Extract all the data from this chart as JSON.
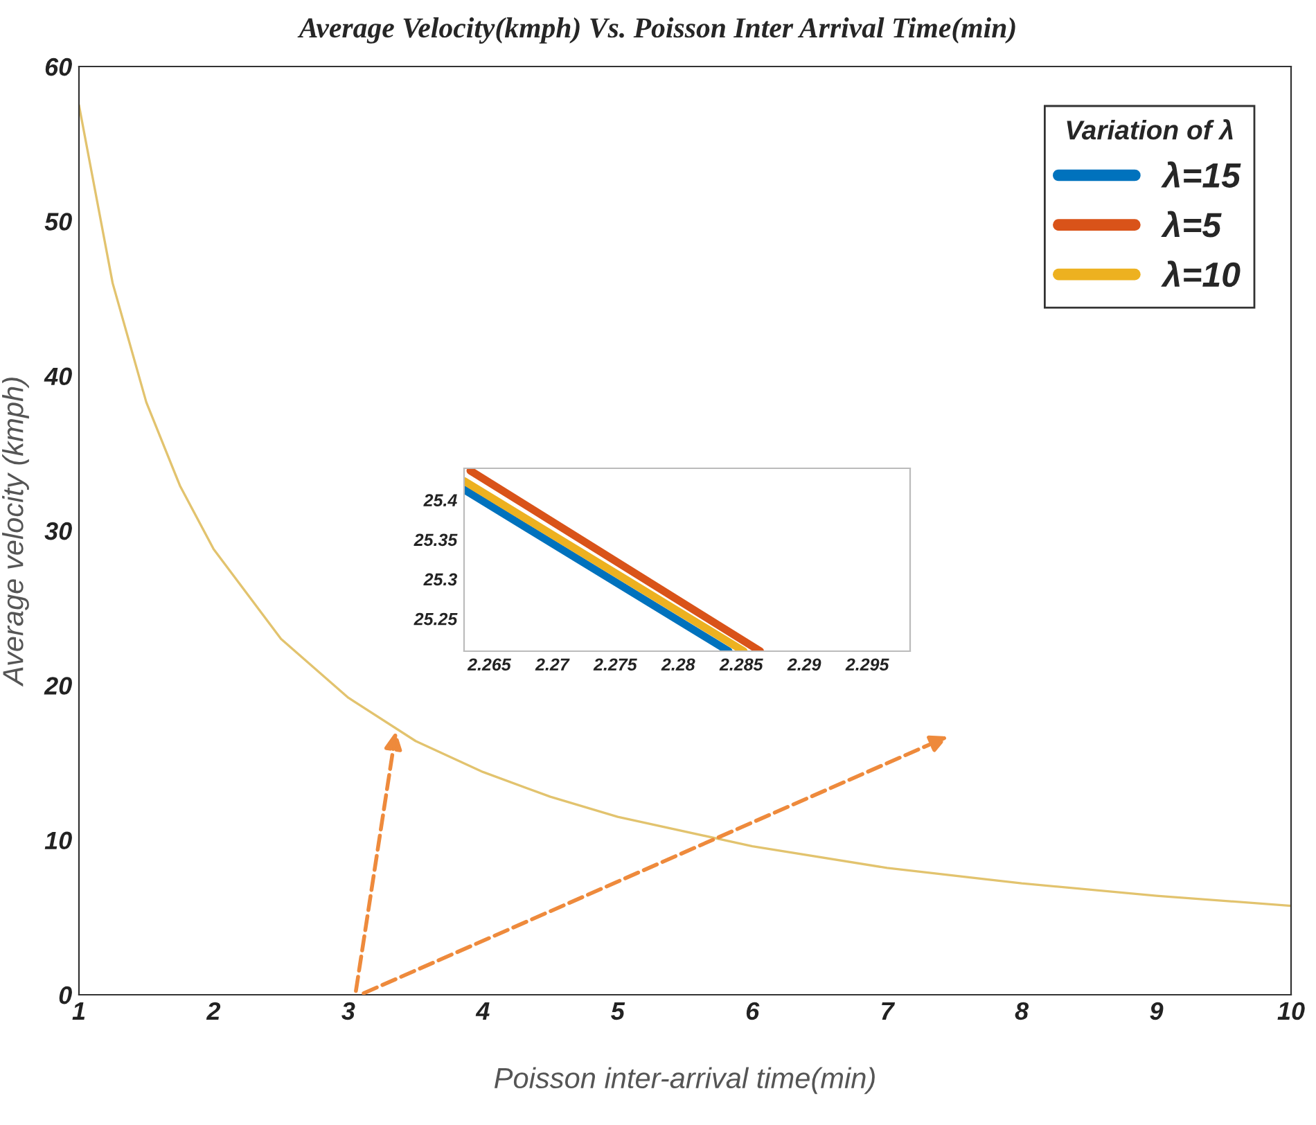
{
  "chart_data": [
    {
      "type": "line",
      "title": "Average Velocity(kmph) Vs. Poisson Inter Arrival Time(min)",
      "xlabel": "Poisson inter-arrival time(min)",
      "ylabel": "Average velocity (kmph)",
      "x": [
        1,
        1.25,
        1.5,
        1.75,
        2,
        2.5,
        3,
        3.5,
        4,
        4.5,
        5,
        6,
        7,
        8,
        9,
        10
      ],
      "series": [
        {
          "color": "#e2c36e",
          "values": [
            57.5,
            46,
            38.3,
            32.9,
            28.8,
            23,
            19.2,
            16.4,
            14.4,
            12.8,
            11.5,
            9.6,
            8.2,
            7.2,
            6.4,
            5.75
          ]
        }
      ],
      "xlim": [
        1,
        10
      ],
      "ylim": [
        0,
        60
      ],
      "xticks": [
        1,
        2,
        3,
        4,
        5,
        6,
        7,
        8,
        9,
        10
      ],
      "yticks": [
        0,
        10,
        20,
        30,
        40,
        50,
        60
      ],
      "grid": false,
      "legend": false
    },
    {
      "type": "line",
      "legend_title": "Variation of λ",
      "series": [
        {
          "name": "λ=15",
          "color": "#0072bd",
          "x": [
            2.263,
            2.284
          ],
          "values": [
            25.413,
            25.209
          ]
        },
        {
          "name": "λ=5",
          "color": "#d95319",
          "x": [
            2.2635,
            2.2865
          ],
          "values": [
            25.437,
            25.209
          ]
        },
        {
          "name": "λ=10",
          "color": "#edb120",
          "x": [
            2.263,
            2.2852
          ],
          "values": [
            25.424,
            25.209
          ]
        }
      ],
      "xlim": [
        2.263,
        2.2984
      ],
      "ylim": [
        25.209,
        25.44
      ],
      "xticks": [
        2.265,
        2.27,
        2.275,
        2.28,
        2.285,
        2.29,
        2.295
      ],
      "yticks": [
        25.25,
        25.3,
        25.35,
        25.4
      ],
      "grid": false,
      "legend": "top right"
    }
  ]
}
